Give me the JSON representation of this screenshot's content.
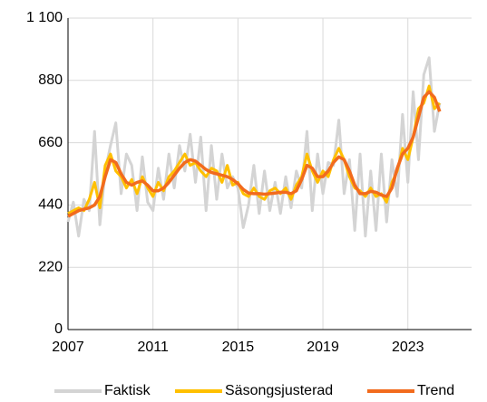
{
  "chart_data": {
    "type": "line",
    "x": [
      2007,
      2007.25,
      2007.5,
      2007.75,
      2008,
      2008.25,
      2008.5,
      2008.75,
      2009,
      2009.25,
      2009.5,
      2009.75,
      2010,
      2010.25,
      2010.5,
      2010.75,
      2011,
      2011.25,
      2011.5,
      2011.75,
      2012,
      2012.25,
      2012.5,
      2012.75,
      2013,
      2013.25,
      2013.5,
      2013.75,
      2014,
      2014.25,
      2014.5,
      2014.75,
      2015,
      2015.25,
      2015.5,
      2015.75,
      2016,
      2016.25,
      2016.5,
      2016.75,
      2017,
      2017.25,
      2017.5,
      2017.75,
      2018,
      2018.25,
      2018.5,
      2018.75,
      2019,
      2019.25,
      2019.5,
      2019.75,
      2020,
      2020.25,
      2020.5,
      2020.75,
      2021,
      2021.25,
      2021.5,
      2021.75,
      2022,
      2022.25,
      2022.5,
      2022.75,
      2023,
      2023.25,
      2023.5,
      2023.75,
      2024,
      2024.25,
      2024.5
    ],
    "series": [
      {
        "name": "Faktisk",
        "color": "#d4d4d4",
        "values": [
          380,
          450,
          330,
          460,
          420,
          700,
          370,
          560,
          650,
          730,
          480,
          620,
          580,
          420,
          610,
          450,
          420,
          570,
          460,
          620,
          500,
          650,
          560,
          690,
          520,
          680,
          420,
          650,
          460,
          620,
          500,
          540,
          500,
          360,
          440,
          580,
          410,
          560,
          420,
          520,
          410,
          540,
          430,
          560,
          500,
          700,
          420,
          620,
          480,
          590,
          580,
          740,
          480,
          600,
          350,
          620,
          330,
          560,
          350,
          620,
          380,
          600,
          470,
          760,
          520,
          840,
          600,
          900,
          960,
          700,
          800
        ]
      },
      {
        "name": "Säsongsjusterad",
        "color": "#ffc000",
        "values": [
          410,
          420,
          430,
          420,
          460,
          520,
          430,
          580,
          620,
          560,
          540,
          500,
          530,
          480,
          540,
          500,
          470,
          520,
          490,
          540,
          560,
          590,
          620,
          580,
          590,
          560,
          540,
          570,
          560,
          520,
          580,
          510,
          520,
          480,
          470,
          500,
          470,
          460,
          490,
          500,
          480,
          500,
          460,
          510,
          540,
          620,
          560,
          520,
          560,
          540,
          600,
          640,
          600,
          540,
          500,
          490,
          470,
          500,
          470,
          480,
          450,
          520,
          560,
          640,
          600,
          680,
          780,
          800,
          860,
          780,
          800
        ]
      },
      {
        "name": "Trend",
        "color": "#f26b1d",
        "values": [
          400,
          410,
          420,
          425,
          430,
          440,
          470,
          540,
          600,
          590,
          550,
          520,
          510,
          520,
          525,
          510,
          490,
          490,
          500,
          520,
          545,
          570,
          590,
          600,
          595,
          580,
          565,
          555,
          550,
          545,
          540,
          530,
          515,
          495,
          482,
          480,
          480,
          478,
          480,
          482,
          485,
          485,
          480,
          490,
          530,
          580,
          570,
          540,
          540,
          560,
          590,
          610,
          600,
          560,
          510,
          480,
          480,
          488,
          485,
          475,
          470,
          500,
          570,
          620,
          640,
          680,
          750,
          820,
          840,
          820,
          770
        ]
      }
    ],
    "xlim": [
      2007,
      2026
    ],
    "xticks": [
      2007,
      2011,
      2015,
      2019,
      2023
    ],
    "ylim": [
      0,
      1100
    ],
    "yticks": [
      0,
      220,
      440,
      660,
      880,
      {
        "value": 1100,
        "label": "1 100"
      }
    ],
    "grid": true
  }
}
